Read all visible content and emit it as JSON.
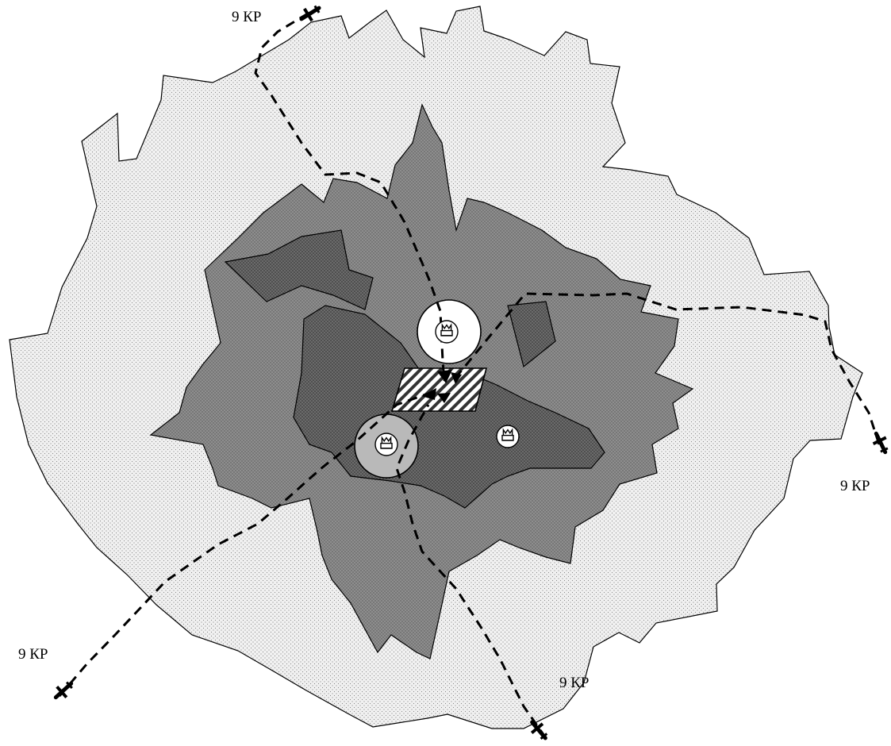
{
  "map": {
    "route_labels": [
      "9 КР",
      "9 КР",
      "9 КР",
      "9 КР"
    ],
    "zones": [
      {
        "name": "outer-zone",
        "color": "#ececec"
      },
      {
        "name": "middle-zone",
        "color": "#8c8c8c"
      },
      {
        "name": "inner-zone",
        "color": "#6a6a6a"
      },
      {
        "name": "target-area",
        "color": "#ffffff"
      }
    ],
    "icons": [
      "factory-icon",
      "factory-icon",
      "factory-icon",
      "aircraft-icon"
    ]
  }
}
